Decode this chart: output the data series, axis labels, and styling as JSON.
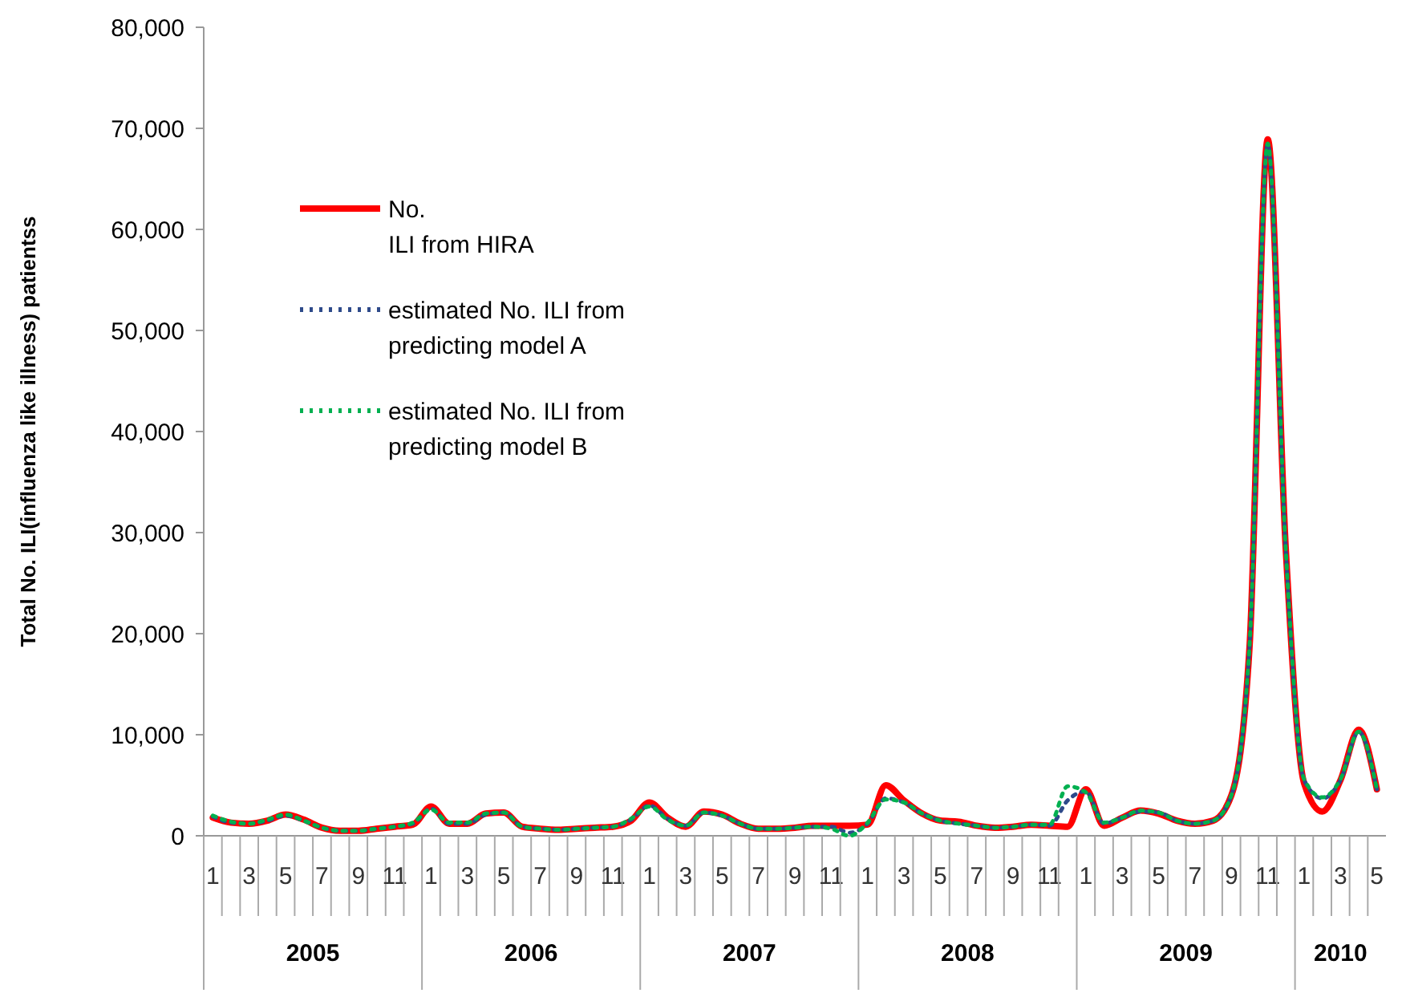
{
  "chart_data": {
    "type": "line",
    "ylabel": "Total No. ILI(influenza like illness) patientss",
    "categories": [
      "1",
      null,
      "3",
      null,
      "5",
      null,
      "7",
      null,
      "9",
      null,
      "11",
      null,
      "1",
      null,
      "3",
      null,
      "5",
      null,
      "7",
      null,
      "9",
      null,
      "11",
      null,
      "1",
      null,
      "3",
      null,
      "5",
      null,
      "7",
      null,
      "9",
      null,
      "11",
      null,
      "1",
      null,
      "3",
      null,
      "5",
      null,
      "7",
      null,
      "9",
      null,
      "11",
      null,
      "1",
      null,
      "3",
      null,
      "5",
      null,
      "7",
      null,
      "9",
      null,
      "11",
      null,
      "1",
      null,
      "3",
      null,
      "5"
    ],
    "annotations": [
      "2005",
      "2006",
      "2007",
      "2008",
      "2009",
      "2010"
    ],
    "ylim": [
      0,
      80000
    ],
    "yticks": [
      {
        "value": 0,
        "label": "0"
      },
      {
        "value": 10000,
        "label": "10,000"
      },
      {
        "value": 20000,
        "label": "20,000"
      },
      {
        "value": 30000,
        "label": "30,000"
      },
      {
        "value": 40000,
        "label": "40,000"
      },
      {
        "value": 50000,
        "label": "50,000"
      },
      {
        "value": 60000,
        "label": "60,000"
      },
      {
        "value": 70000,
        "label": "70,000"
      },
      {
        "value": 80000,
        "label": "80,000"
      }
    ],
    "grid": false,
    "legend": "top left",
    "marker": "none",
    "series": [
      {
        "name": "No. ILI from HIRA",
        "color": "#ff0000",
        "line_style": "solid",
        "values": [
          1800,
          1300,
          1200,
          1500,
          2100,
          1600,
          800,
          500,
          500,
          700,
          900,
          1100,
          2900,
          1200,
          1200,
          2200,
          2300,
          900,
          700,
          600,
          700,
          800,
          900,
          1500,
          3300,
          1800,
          900,
          2400,
          2100,
          1200,
          700,
          700,
          800,
          1000,
          1000,
          1000,
          1100,
          5000,
          3500,
          2200,
          1500,
          1400,
          1000,
          800,
          900,
          1100,
          1000,
          900,
          4600,
          1000,
          1800,
          2500,
          2200,
          1500,
          1200,
          1500,
          4000,
          18700,
          68900,
          28100,
          5200,
          2400,
          5500,
          10500,
          4600
        ]
      },
      {
        "name": "estimated No. ILI from predicting model A",
        "color": "#2e4a8a",
        "line_style": "dotted",
        "values": [
          1900,
          1300,
          1200,
          1500,
          2000,
          1500,
          800,
          500,
          500,
          700,
          900,
          1200,
          2700,
          1200,
          1200,
          2100,
          2300,
          900,
          700,
          600,
          700,
          800,
          900,
          1600,
          3000,
          1700,
          1000,
          2300,
          2000,
          1200,
          700,
          700,
          800,
          900,
          900,
          300,
          1200,
          3700,
          3300,
          2200,
          1500,
          1200,
          1000,
          800,
          900,
          1100,
          1000,
          3500,
          4400,
          1200,
          1800,
          2400,
          2300,
          1500,
          1200,
          1500,
          4000,
          18700,
          68500,
          28000,
          5500,
          3700,
          5500,
          10300,
          4600
        ]
      },
      {
        "name": "estimated No. ILI from predicting model B",
        "color": "#00b050",
        "line_style": "dotted",
        "values": [
          2000,
          1400,
          1200,
          1600,
          2100,
          1500,
          800,
          500,
          500,
          700,
          900,
          1300,
          2600,
          1300,
          1300,
          2200,
          2300,
          900,
          700,
          600,
          700,
          800,
          900,
          1700,
          2900,
          1600,
          1000,
          2300,
          2000,
          1200,
          700,
          700,
          800,
          900,
          700,
          0,
          1300,
          3600,
          3300,
          2200,
          1500,
          1200,
          1000,
          800,
          900,
          1100,
          1100,
          4900,
          4300,
          1300,
          1800,
          2500,
          2300,
          1500,
          1200,
          1500,
          4000,
          18800,
          68500,
          28000,
          5600,
          3800,
          5600,
          10300,
          4600
        ]
      }
    ]
  }
}
